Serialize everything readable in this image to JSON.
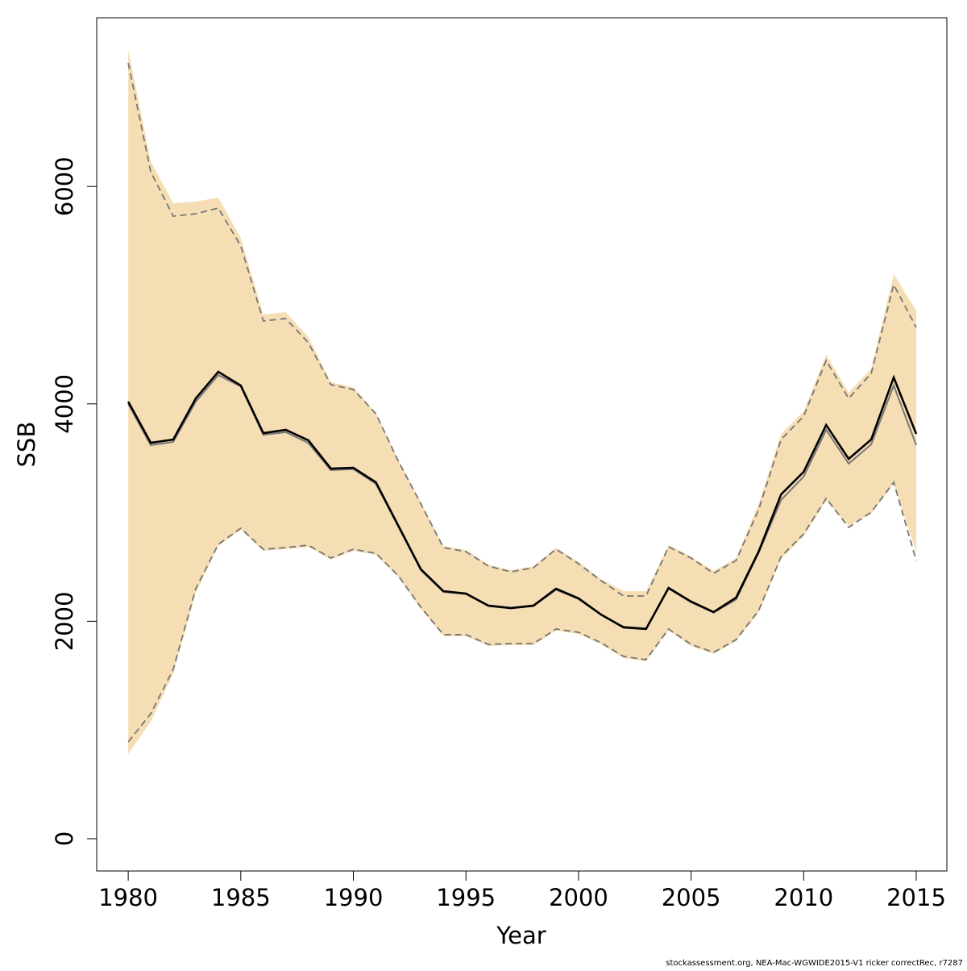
{
  "chart_data": {
    "type": "line",
    "xlabel": "Year",
    "ylabel": "SSB",
    "footnote": "stockassessment.org, NEA-Mac-WGWIDE2015-V1 ricker correctRec, r7287",
    "x": [
      1980,
      1981,
      1982,
      1983,
      1984,
      1985,
      1986,
      1987,
      1988,
      1989,
      1990,
      1991,
      1992,
      1993,
      1994,
      1995,
      1996,
      1997,
      1998,
      1999,
      2000,
      2001,
      2002,
      2003,
      2004,
      2005,
      2006,
      2007,
      2008,
      2009,
      2010,
      2011,
      2012,
      2013,
      2014,
      2015
    ],
    "xlim": [
      1978.6,
      2016.36
    ],
    "xticks": [
      1980,
      1985,
      1990,
      1995,
      2000,
      2005,
      2010,
      2015
    ],
    "ylim": [
      -297,
      7552
    ],
    "yticks": [
      0,
      2000,
      4000,
      6000
    ],
    "band": {
      "color": "#f5deb3",
      "upper": [
        7255,
        6231,
        5846,
        5861,
        5898,
        5527,
        4822,
        4844,
        4614,
        4199,
        4154,
        3917,
        3487,
        3093,
        2693,
        2656,
        2522,
        2470,
        2507,
        2678,
        2545,
        2389,
        2277,
        2277,
        2700,
        2596,
        2463,
        2582,
        3079,
        3724,
        3932,
        4451,
        4102,
        4325,
        5193,
        4859
      ],
      "lower": [
        779,
        1076,
        1521,
        2263,
        2693,
        2841,
        2648,
        2663,
        2685,
        2567,
        2648,
        2611,
        2404,
        2114,
        1862,
        1862,
        1773,
        1780,
        1780,
        1914,
        1884,
        1788,
        1662,
        1632,
        1914,
        1773,
        1699,
        1818,
        2077,
        2574,
        2782,
        3108,
        2878,
        2990,
        3264,
        2634
      ]
    },
    "series": [
      {
        "color": "#777777",
        "dash": true,
        "values": [
          7136,
          6135,
          5727,
          5749,
          5801,
          5453,
          4763,
          4785,
          4562,
          4177,
          4132,
          3909,
          3472,
          3079,
          2678,
          2641,
          2507,
          2455,
          2493,
          2663,
          2530,
          2374,
          2233,
          2233,
          2685,
          2582,
          2441,
          2559,
          3027,
          3672,
          3887,
          4399,
          4050,
          4280,
          5096,
          4703
        ]
      },
      {
        "color": "#777777",
        "dash": true,
        "values": [
          890,
          1150,
          1558,
          2300,
          2708,
          2856,
          2663,
          2678,
          2700,
          2582,
          2663,
          2626,
          2418,
          2129,
          1877,
          1877,
          1788,
          1795,
          1795,
          1929,
          1899,
          1803,
          1677,
          1647,
          1929,
          1788,
          1714,
          1832,
          2099,
          2596,
          2804,
          3131,
          2864,
          3004,
          3279,
          2559
        ]
      },
      {
        "color": "#777777",
        "dash": false,
        "values": [
          4000,
          3620,
          3650,
          4020,
          4265,
          4160,
          3715,
          3740,
          3640,
          3390,
          3400,
          3265,
          2870,
          2470,
          2270,
          2250,
          2140,
          2118,
          2140,
          2290,
          2205,
          2060,
          1950,
          1935,
          2300,
          2175,
          2080,
          2200,
          2630,
          3116,
          3331,
          3761,
          3450,
          3627,
          4169,
          3620
        ]
      },
      {
        "color": "#000000",
        "dash": false,
        "values": [
          4021,
          3642,
          3672,
          4050,
          4295,
          4169,
          3731,
          3761,
          3665,
          3405,
          3412,
          3279,
          2878,
          2478,
          2277,
          2255,
          2144,
          2122,
          2144,
          2300,
          2211,
          2062,
          1944,
          1929,
          2307,
          2181,
          2085,
          2218,
          2641,
          3168,
          3375,
          3806,
          3494,
          3672,
          4243,
          3724
        ]
      }
    ]
  }
}
